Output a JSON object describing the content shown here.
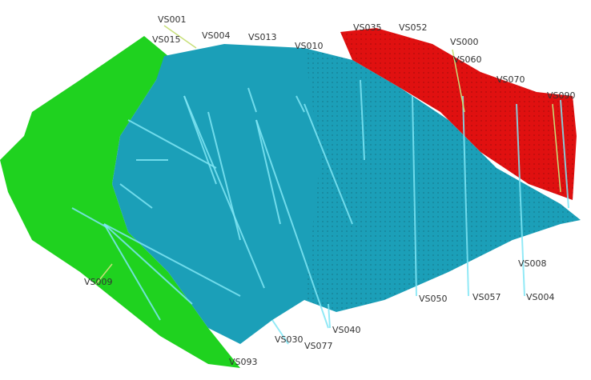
{
  "wells": [
    {
      "label": "VS001"
    },
    {
      "label": "VS015"
    },
    {
      "label": "VS004"
    },
    {
      "label": "VS013"
    },
    {
      "label": "VS010"
    },
    {
      "label": "VS035"
    },
    {
      "label": "VS052"
    },
    {
      "label": "VS000"
    },
    {
      "label": "VS060"
    },
    {
      "label": "VS070"
    },
    {
      "label": "VS090"
    },
    {
      "label": "VS009"
    },
    {
      "label": "VS050"
    },
    {
      "label": "VS057"
    },
    {
      "label": "VS004"
    },
    {
      "label": "VS008"
    },
    {
      "label": "VS040"
    },
    {
      "label": "VS030"
    },
    {
      "label": "VS077"
    },
    {
      "label": "VS093"
    }
  ]
}
